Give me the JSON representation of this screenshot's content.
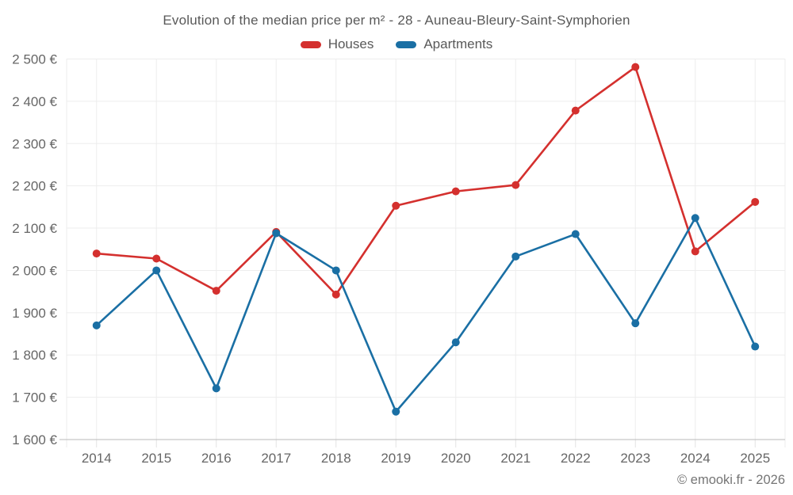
{
  "footer": "© emooki.fr - 2026",
  "colors": {
    "houses": "#d4302e",
    "apartments": "#1a6fa4",
    "grid": "#ededed",
    "tick": "#e2e2e2",
    "axis_line": "#c6c6c6",
    "text": "#666666",
    "title_text": "#595959"
  },
  "chart_data": {
    "type": "line",
    "title": "Evolution of the median price per m² - 28 - Auneau-Bleury-Saint-Symphorien",
    "x": [
      "2014",
      "2015",
      "2016",
      "2017",
      "2018",
      "2019",
      "2020",
      "2021",
      "2022",
      "2023",
      "2024",
      "2025"
    ],
    "series": [
      {
        "name": "Houses",
        "color": "#d4302e",
        "values": [
          2040,
          2028,
          1952,
          2091,
          1943,
          2153,
          2187,
          2202,
          2378,
          2481,
          2045,
          2162
        ]
      },
      {
        "name": "Apartments",
        "color": "#1a6fa4",
        "values": [
          1870,
          2000,
          1721,
          2088,
          2000,
          1666,
          1830,
          2033,
          2086,
          1875,
          2124,
          1820
        ]
      }
    ],
    "ylabel": "",
    "xlabel": "",
    "ylim": [
      1600,
      2500
    ],
    "ytick_step": 100,
    "ytick_labels": [
      "1 600 €",
      "1 700 €",
      "1 800 €",
      "1 900 €",
      "2 000 €",
      "2 100 €",
      "2 200 €",
      "2 300 €",
      "2 400 €",
      "2 500 €"
    ],
    "grid": true,
    "legend_position": "top",
    "marker": "circle"
  }
}
